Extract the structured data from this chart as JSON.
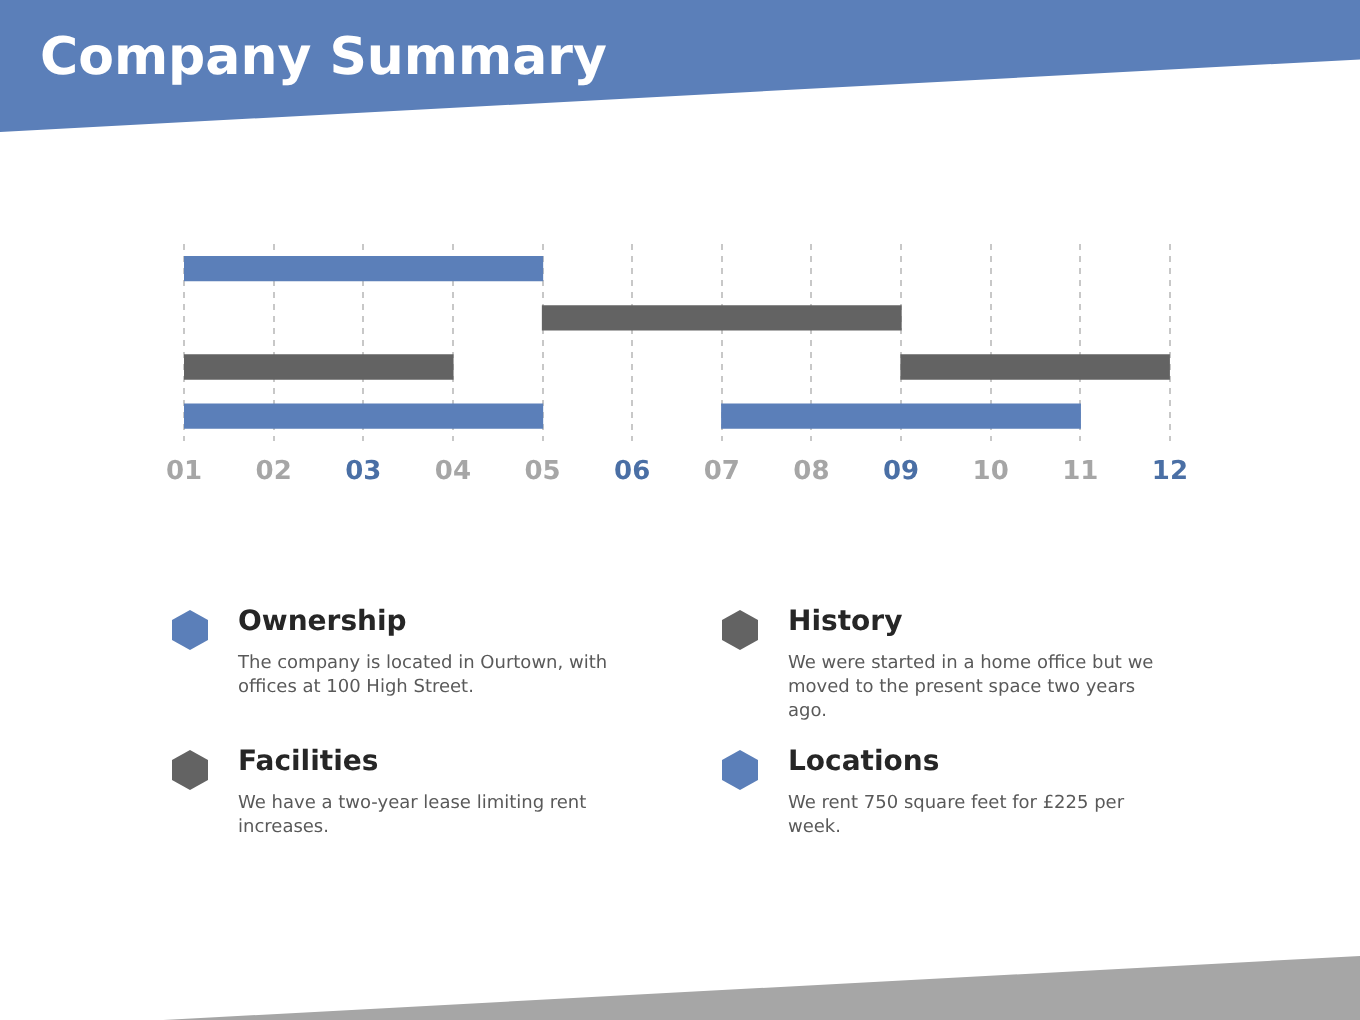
{
  "chart_data": [
    {
      "type": "bar",
      "title": "Company Summary",
      "orientation": "horizontal",
      "categories": [
        null,
        null,
        null,
        null
      ],
      "series": [
        {
          "values": [
            4,
            4,
            3,
            4
          ],
          "base": [
            1,
            5,
            1,
            1
          ],
          "colors": [
            "#5b7fb9",
            "#636363",
            "#636363",
            "#5b7fb9"
          ]
        },
        {
          "values": [
            null,
            null,
            3,
            4
          ],
          "base": [
            null,
            null,
            9,
            7
          ],
          "colors": [
            "#5b7fb9",
            "#636363",
            "#636363",
            "#5b7fb9"
          ]
        }
      ],
      "xlim": [
        1,
        12
      ],
      "xticks": [
        {
          "value": 1,
          "label": "01"
        },
        {
          "value": 2,
          "label": "02"
        },
        {
          "value": 3,
          "label": "03"
        },
        {
          "value": 4,
          "label": "04"
        },
        {
          "value": 5,
          "label": "05"
        },
        {
          "value": 6,
          "label": "06"
        },
        {
          "value": 7,
          "label": "07"
        },
        {
          "value": 8,
          "label": "08"
        },
        {
          "value": 9,
          "label": "09"
        },
        {
          "value": 10,
          "label": "10"
        },
        {
          "value": 11,
          "label": "11"
        },
        {
          "value": 12,
          "label": "12"
        }
      ],
      "grid": "x",
      "tick_labels": "x",
      "legend": false
    },
    {
      "type": "other",
      "annotations": [
        "Ownership",
        "The company is located in Ourtown, with offices at 100 High Street.",
        "History",
        "We were started in a home office but we moved to the present space two years ago.",
        "Facilities",
        "We have a two-year lease limiting rent increases.",
        "Locations",
        "We rent 750 square feet for £225 per week."
      ]
    }
  ]
}
